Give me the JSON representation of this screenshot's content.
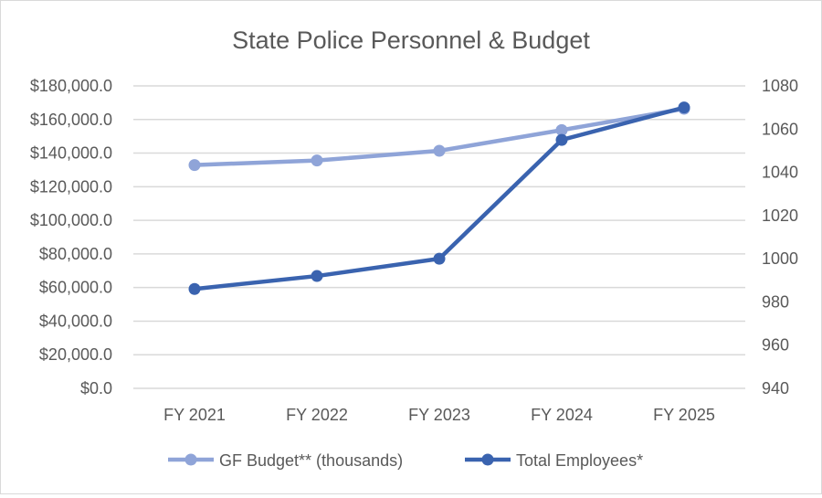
{
  "chart_data": {
    "type": "line",
    "title": "State Police Personnel & Budget",
    "categories": [
      "FY 2021",
      "FY 2022",
      "FY 2023",
      "FY 2024",
      "FY 2025"
    ],
    "series": [
      {
        "name": "GF Budget** (thousands)",
        "axis": "left",
        "color": "#8FA4D8",
        "values": [
          132900,
          135600,
          141400,
          153700,
          166400
        ]
      },
      {
        "name": "Total Employees*",
        "axis": "right",
        "color": "#3A63AF",
        "values": [
          986,
          992,
          1000,
          1055,
          1070
        ]
      }
    ],
    "left_axis": {
      "ylim": [
        0,
        180000
      ],
      "ticks": [
        "$0.0",
        "$20,000.0",
        "$40,000.0",
        "$60,000.0",
        "$80,000.0",
        "$100,000.0",
        "$120,000.0",
        "$140,000.0",
        "$160,000.0",
        "$180,000.0"
      ]
    },
    "right_axis": {
      "ylim": [
        940,
        1080
      ],
      "ticks": [
        "940",
        "960",
        "980",
        "1000",
        "1020",
        "1040",
        "1060",
        "1080"
      ]
    },
    "grid": true,
    "legend": "bottom"
  }
}
